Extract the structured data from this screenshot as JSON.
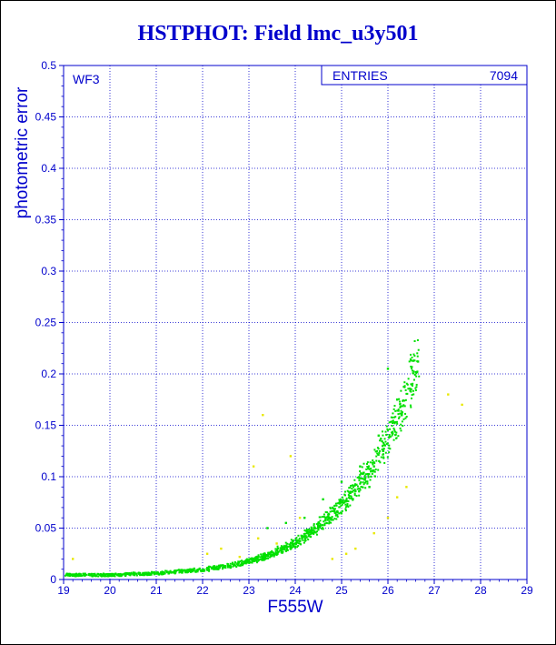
{
  "chart_data": {
    "type": "scatter",
    "title": "HSTPHOT: Field lmc_u3y501",
    "xlabel": "F555W",
    "ylabel": "photometric error",
    "panel_label": "WF3",
    "stats_label": "ENTRIES",
    "stats_value": "7094",
    "xlim": [
      19,
      29
    ],
    "ylim": [
      0,
      0.5
    ],
    "x_ticks": [
      "19",
      "20",
      "21",
      "22",
      "23",
      "24",
      "25",
      "26",
      "27",
      "28",
      "29"
    ],
    "y_ticks": [
      "0",
      "0.05",
      "0.1",
      "0.15",
      "0.2",
      "0.25",
      "0.3",
      "0.35",
      "0.4",
      "0.45",
      "0.5"
    ],
    "grid": true,
    "colors": {
      "axes": "#0000cc",
      "series_main": "#00e000",
      "series_secondary": "#e8e800"
    },
    "series": [
      {
        "color": "#00e000",
        "points": [
          [
            19.1,
            0.004
          ],
          [
            19.3,
            0.004
          ],
          [
            19.6,
            0.004
          ],
          [
            19.9,
            0.004
          ],
          [
            20.2,
            0.004
          ],
          [
            20.5,
            0.005
          ],
          [
            20.8,
            0.005
          ],
          [
            21.1,
            0.006
          ],
          [
            21.4,
            0.007
          ],
          [
            21.7,
            0.008
          ],
          [
            22.0,
            0.009
          ],
          [
            22.3,
            0.011
          ],
          [
            22.6,
            0.013
          ],
          [
            22.9,
            0.016
          ],
          [
            23.1,
            0.018
          ],
          [
            23.3,
            0.021
          ],
          [
            23.5,
            0.024
          ],
          [
            23.7,
            0.028
          ],
          [
            23.9,
            0.032
          ],
          [
            24.1,
            0.037
          ],
          [
            24.3,
            0.043
          ],
          [
            24.5,
            0.05
          ],
          [
            24.7,
            0.058
          ],
          [
            24.9,
            0.066
          ],
          [
            25.1,
            0.076
          ],
          [
            25.3,
            0.086
          ],
          [
            25.5,
            0.097
          ],
          [
            25.7,
            0.11
          ],
          [
            25.9,
            0.125
          ],
          [
            26.1,
            0.142
          ],
          [
            26.3,
            0.16
          ],
          [
            26.5,
            0.185
          ],
          [
            26.65,
            0.212
          ],
          [
            23.4,
            0.05
          ],
          [
            23.8,
            0.055
          ],
          [
            24.2,
            0.06
          ],
          [
            24.6,
            0.078
          ],
          [
            25.0,
            0.095
          ],
          [
            25.4,
            0.11
          ],
          [
            25.8,
            0.14
          ],
          [
            26.2,
            0.175
          ],
          [
            26.0,
            0.205
          ],
          [
            25.6,
            0.09
          ]
        ]
      },
      {
        "color": "#e8e800",
        "points": [
          [
            19.2,
            0.02
          ],
          [
            22.1,
            0.025
          ],
          [
            22.4,
            0.03
          ],
          [
            22.8,
            0.022
          ],
          [
            23.2,
            0.04
          ],
          [
            23.6,
            0.035
          ],
          [
            24.1,
            0.06
          ],
          [
            24.8,
            0.02
          ],
          [
            25.1,
            0.025
          ],
          [
            25.7,
            0.045
          ],
          [
            26.2,
            0.08
          ],
          [
            26.4,
            0.09
          ],
          [
            27.3,
            0.18
          ],
          [
            27.6,
            0.17
          ],
          [
            23.3,
            0.16
          ],
          [
            23.9,
            0.12
          ],
          [
            23.1,
            0.11
          ],
          [
            25.3,
            0.03
          ],
          [
            26.0,
            0.06
          ]
        ]
      }
    ]
  }
}
